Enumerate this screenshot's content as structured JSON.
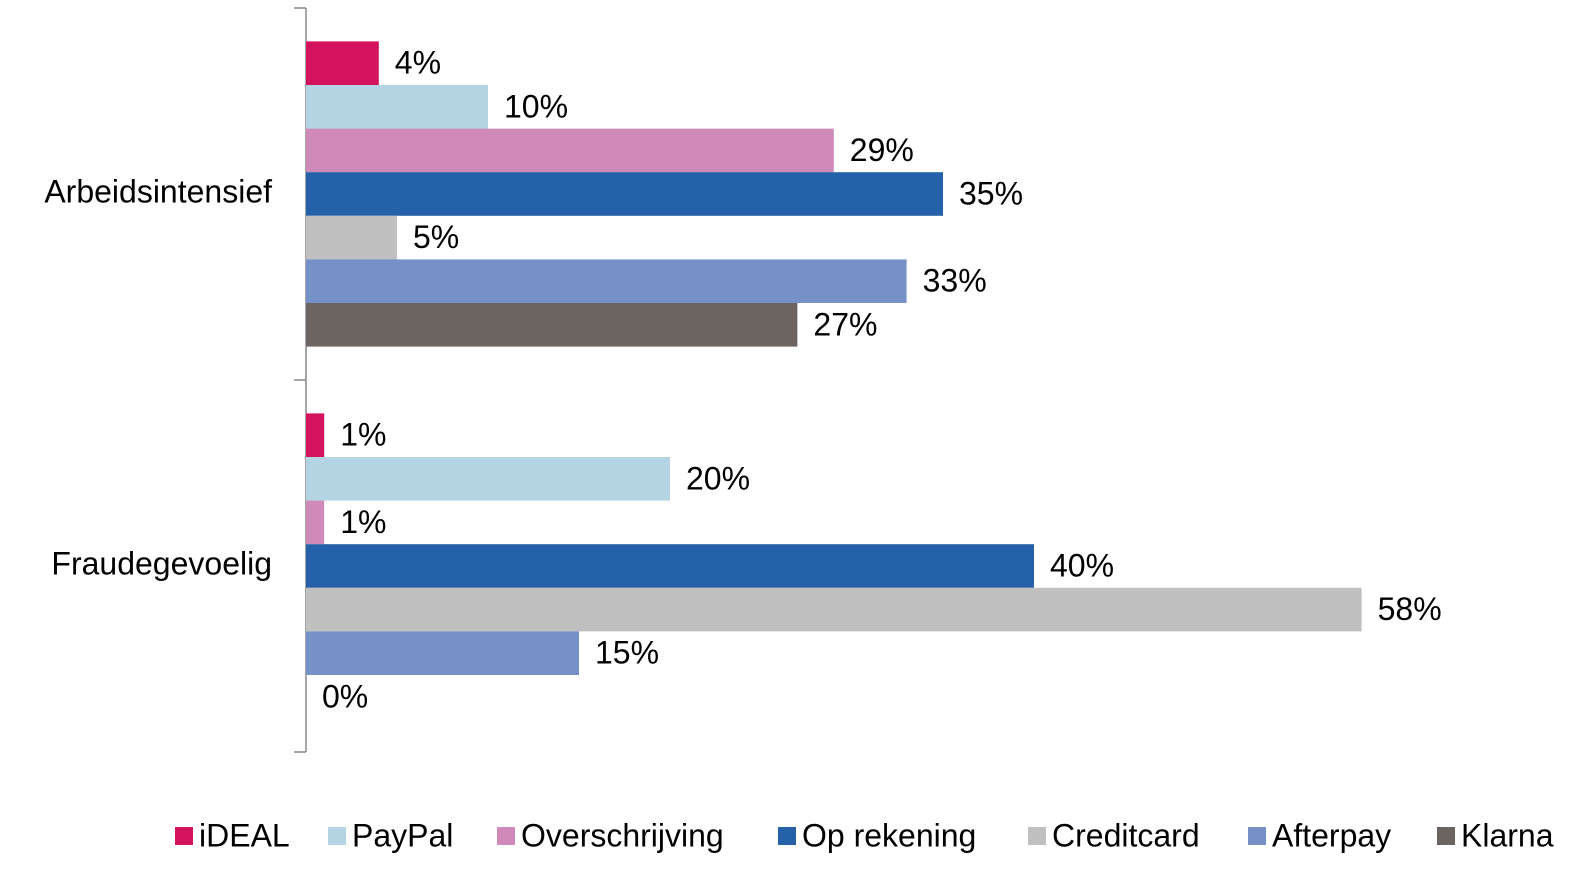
{
  "chart_data": {
    "type": "barh",
    "categories": [
      "Arbeidsintensief",
      "Fraudegevoelig"
    ],
    "series": [
      {
        "name": "iDEAL",
        "color": "#d4135f",
        "values": [
          4,
          1
        ],
        "value_labels": [
          "4%",
          "1%"
        ]
      },
      {
        "name": "PayPal",
        "color": "#b4d3e3",
        "values": [
          10,
          20
        ],
        "value_labels": [
          "10%",
          "20%"
        ]
      },
      {
        "name": "Overschrijving",
        "color": "#cf8aba",
        "values": [
          29,
          1
        ],
        "value_labels": [
          "29%",
          "1%"
        ]
      },
      {
        "name": "Op rekening",
        "color": "#2561a8",
        "values": [
          35,
          40
        ],
        "value_labels": [
          "35%",
          "40%"
        ]
      },
      {
        "name": "Creditcard",
        "color": "#c0c0c0",
        "values": [
          5,
          58
        ],
        "value_labels": [
          "5%",
          "58%"
        ]
      },
      {
        "name": "Afterpay",
        "color": "#7691c8",
        "values": [
          33,
          15
        ],
        "value_labels": [
          "33%",
          "15%"
        ]
      },
      {
        "name": "Klarna",
        "color": "#6b6461",
        "values": [
          27,
          0
        ],
        "value_labels": [
          "27%",
          "0%"
        ]
      }
    ],
    "xlim": [
      0,
      65
    ],
    "legend": "bottom"
  }
}
